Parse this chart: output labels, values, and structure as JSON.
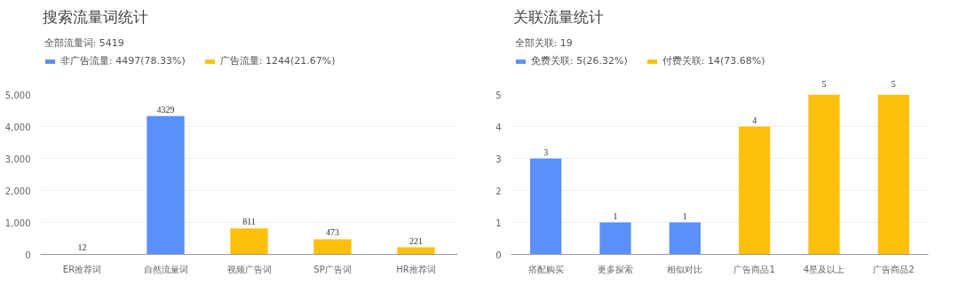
{
  "chart_data": [
    {
      "type": "bar",
      "title": "搜索流量词统计",
      "subtitle": "全部流量词: 5419",
      "categories": [
        "ER推荐词",
        "自然流量词",
        "视频广告词",
        "SP广告词",
        "HR推荐词"
      ],
      "series": [
        {
          "name": "非广告流量: 4497(78.33%)",
          "color": "#5b8ff9",
          "values": [
            12,
            4329,
            null,
            null,
            null
          ]
        },
        {
          "name": "广告流量: 1244(21.67%)",
          "color": "#fcbf0b",
          "values": [
            null,
            null,
            811,
            473,
            221
          ]
        }
      ],
      "ylim": [
        0,
        5000
      ],
      "yticks": [
        {
          "value": 0,
          "label": "0"
        },
        {
          "value": 1000,
          "label": "1,000"
        },
        {
          "value": 2000,
          "label": "2,000"
        },
        {
          "value": 3000,
          "label": "3,000"
        },
        {
          "value": 4000,
          "label": "4,000"
        },
        {
          "value": 5000,
          "label": "5,000"
        }
      ],
      "grid": "y",
      "legend": "top left",
      "data_labels": true
    },
    {
      "type": "bar",
      "title": "关联流量统计",
      "subtitle": "全部关联: 19",
      "categories": [
        "搭配购买",
        "更多探索",
        "相似对比",
        "广告商品1",
        "4星及以上",
        "广告商品2"
      ],
      "series": [
        {
          "name": "免费关联: 5(26.32%)",
          "color": "#5b8ff9",
          "values": [
            3,
            1,
            1,
            null,
            null,
            null
          ]
        },
        {
          "name": "付费关联: 14(73.68%)",
          "color": "#fcbf0b",
          "values": [
            null,
            null,
            null,
            4,
            5,
            5
          ]
        }
      ],
      "ylim": [
        0,
        5
      ],
      "yticks": [
        0,
        1,
        2,
        3,
        4,
        5
      ],
      "grid": "y",
      "legend": "top left",
      "data_labels": true
    }
  ]
}
